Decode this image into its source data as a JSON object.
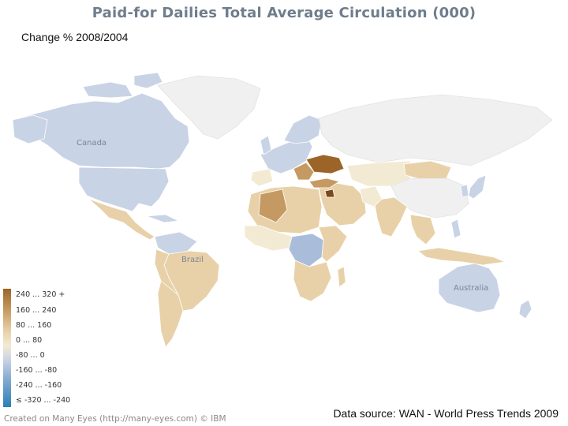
{
  "title": "Paid-for Dailies Total Average Circulation (000)",
  "subtitle": "Change % 2008/2004",
  "map_labels": {
    "canada": "Canada",
    "brazil": "Brazil",
    "australia": "Australia"
  },
  "legend": {
    "items": [
      {
        "label": "240 ... 320 +",
        "color": "#9c6427"
      },
      {
        "label": "160 ... 240",
        "color": "#c59a62"
      },
      {
        "label": "80 ... 160",
        "color": "#e8d1a8"
      },
      {
        "label": "0 ... 80",
        "color": "#f3ead3"
      },
      {
        "label": "-80 ... 0",
        "color": "#c9d3e6"
      },
      {
        "label": "-160 ... -80",
        "color": "#a9bddb"
      },
      {
        "label": "-240 ... -160",
        "color": "#7fa8cf"
      },
      {
        "label": "≤ -320 ... -240",
        "color": "#2a7fb8"
      }
    ]
  },
  "footer": {
    "created": "Created on Many Eyes (http://many-eyes.com) © IBM",
    "source": "Data source: WAN - World Press Trends 2009"
  },
  "colors": {
    "no_data": "#f0f0f0",
    "blue_light": "#c9d3e6",
    "blue_mid": "#a9bddb",
    "tan_light": "#f3ead3",
    "tan_mid": "#e8d1a8",
    "tan_dark": "#c59a62",
    "brown": "#9c6427"
  }
}
